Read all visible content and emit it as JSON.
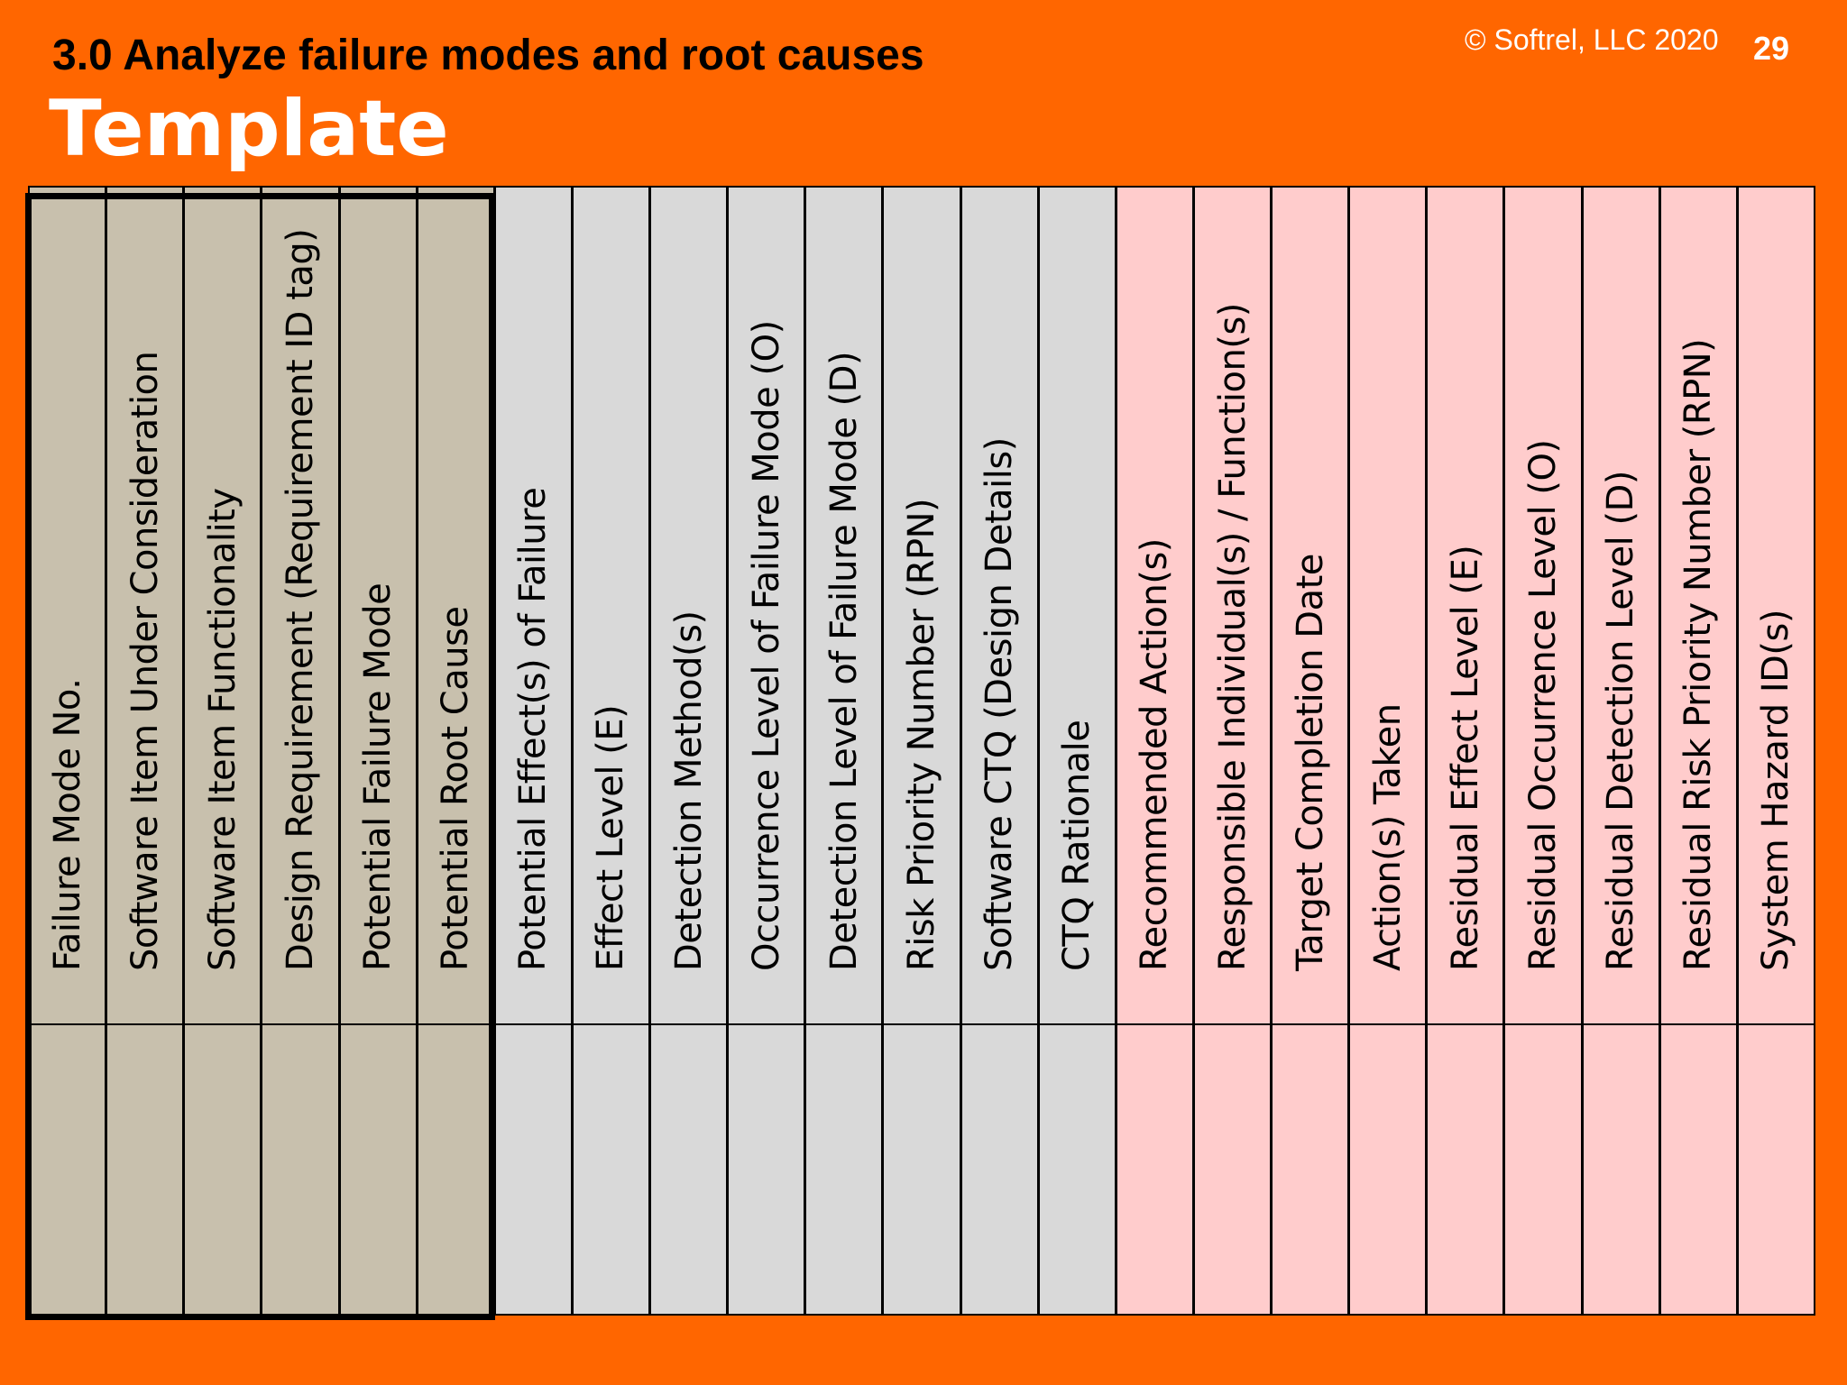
{
  "header": {
    "section_title": "3.0 Analyze failure modes and root causes",
    "slide_title": "Template",
    "copyright": "© Softrel, LLC 2020",
    "page_number": "29"
  },
  "colors": {
    "background": "#FF6600",
    "group_tan": "#C8C0AD",
    "group_gray": "#D9D9D9",
    "group_pink": "#FFCCCC"
  },
  "table": {
    "columns": [
      {
        "label": "Failure Mode No.",
        "group": "tan"
      },
      {
        "label": "Software Item Under Consideration",
        "group": "tan"
      },
      {
        "label": "Software Item Functionality",
        "group": "tan"
      },
      {
        "label": "Design Requirement (Requirement ID tag)",
        "group": "tan"
      },
      {
        "label": "Potential Failure Mode",
        "group": "tan"
      },
      {
        "label": "Potential Root Cause",
        "group": "tan"
      },
      {
        "label": "Potential Effect(s) of Failure",
        "group": "gray"
      },
      {
        "label": "Effect Level (E)",
        "group": "gray"
      },
      {
        "label": "Detection Method(s)",
        "group": "gray"
      },
      {
        "label": "Occurrence Level of Failure Mode (O)",
        "group": "gray"
      },
      {
        "label": "Detection Level of Failure Mode (D)",
        "group": "gray"
      },
      {
        "label": "Risk Priority Number (RPN)",
        "group": "gray"
      },
      {
        "label": "Software CTQ (Design Details)",
        "group": "gray"
      },
      {
        "label": "CTQ Rationale",
        "group": "gray"
      },
      {
        "label": "Recommended Action(s)",
        "group": "pink"
      },
      {
        "label": "Responsible Individual(s) / Function(s)",
        "group": "pink"
      },
      {
        "label": "Target Completion Date",
        "group": "pink"
      },
      {
        "label": "Action(s) Taken",
        "group": "pink"
      },
      {
        "label": "Residual Effect Level (E)",
        "group": "pink"
      },
      {
        "label": "Residual Occurrence Level (O)",
        "group": "pink"
      },
      {
        "label": "Residual Detection Level (D)",
        "group": "pink"
      },
      {
        "label": "Residual Risk Priority Number (RPN)",
        "group": "pink"
      },
      {
        "label": "System Hazard ID(s)",
        "group": "pink"
      }
    ]
  }
}
